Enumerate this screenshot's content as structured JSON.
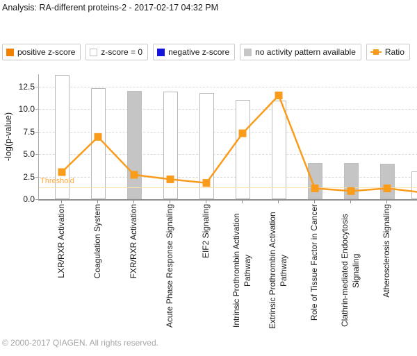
{
  "header": {
    "title": "Analysis: RA-different proteins-2 - 2017-02-17 04:32 PM"
  },
  "legend": {
    "items": [
      {
        "label": "positive z-score",
        "swatch": "orange-square",
        "color": "#F28100"
      },
      {
        "label": "z-score = 0",
        "swatch": "white-square",
        "color": "#FFFFFF"
      },
      {
        "label": "negative z-score",
        "swatch": "blue-square",
        "color": "#1414DC"
      },
      {
        "label": "no activity pattern available",
        "swatch": "gray-square",
        "color": "#C6C6C6"
      },
      {
        "label": "Ratio",
        "swatch": "orange-line-square",
        "color": "#FA9C1B"
      }
    ]
  },
  "chart_data": {
    "type": "bar",
    "title": "",
    "xlabel": "",
    "ylabel": "-log(p-value)",
    "ylim": [
      0,
      13.85
    ],
    "yticks": [
      "0.0",
      "2.5",
      "5.0",
      "7.5",
      "10.0",
      "12.5"
    ],
    "grid": "horizontal dashed",
    "legend_position": "top",
    "threshold": {
      "label": "Threshold",
      "value": 1.3
    },
    "categories": [
      "LXR/RXR Activation",
      "Coagulation System",
      "FXR/RXR Activation",
      "Acute Phase Response Signaling",
      "EIF2 Signaling",
      "Intrinsic Prothrombin Activation Pathway",
      "Extrinsic Prothrombin Activation Pathway",
      "Role of Tissue Factor in Cancer",
      "Clathrin-mediated Endocytosis Signaling",
      "Atherosclerosis Signaling"
    ],
    "series": [
      {
        "name": "-log(p-value)",
        "type": "bar",
        "values": [
          13.8,
          12.3,
          12.0,
          11.9,
          11.8,
          11.0,
          10.9,
          4.0,
          4.0,
          3.9
        ],
        "bar_styles": [
          "z0",
          "z0",
          "na",
          "z0",
          "z0",
          "z0",
          "z0",
          "na",
          "na",
          "na"
        ]
      },
      {
        "name": "Ratio",
        "type": "line",
        "values": [
          3.0,
          6.9,
          2.7,
          2.2,
          1.8,
          7.3,
          11.5,
          1.2,
          0.9,
          1.2
        ]
      }
    ],
    "clipped_column_at_right_edge": {
      "bar_value": 3.1,
      "bar_style": "z0",
      "ratio_value": 0.8
    }
  },
  "colors": {
    "positive_z": "#F28100",
    "zscore0_fill": "#FFFFFF",
    "negative_z": "#1414DC",
    "no_activity_fill": "#C5C5C5",
    "ratio_line": "#FA9C1B",
    "bar_border": "#B8B8B8",
    "threshold_line": "#FFDFAE",
    "threshold_text": "#FFA93C"
  },
  "footer": {
    "copyright": "© 2000-2017 QIAGEN. All rights reserved."
  }
}
